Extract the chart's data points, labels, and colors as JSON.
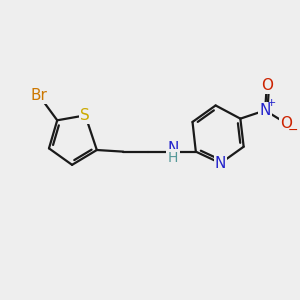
{
  "background_color": "#eeeeee",
  "bond_color": "#1a1a1a",
  "bond_width": 1.6,
  "S_color": "#ccaa00",
  "Br_color": "#cc7700",
  "N_color": "#2222cc",
  "H_color": "#559999",
  "O_color": "#cc2200",
  "figsize": [
    3.0,
    3.0
  ],
  "dpi": 100,
  "xlim": [
    -0.3,
    8.3
  ],
  "ylim": [
    -3.0,
    2.0
  ]
}
